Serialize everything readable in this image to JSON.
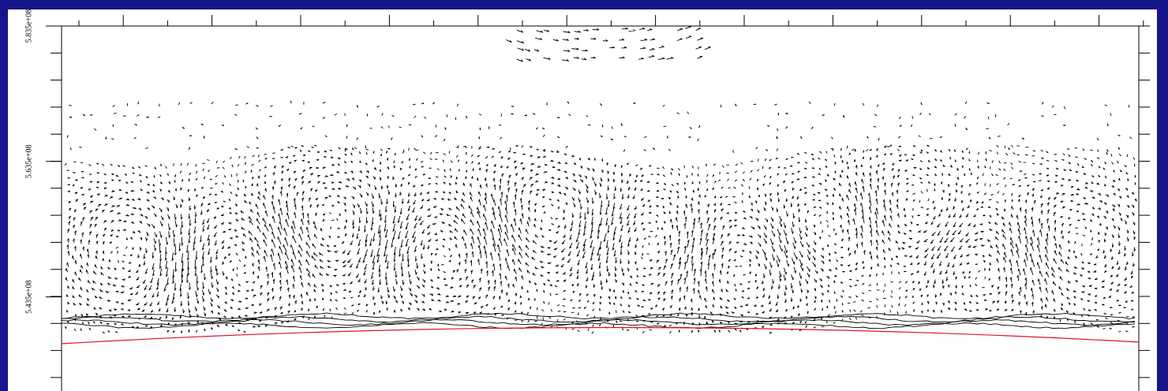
{
  "chart_data": {
    "type": "quiver",
    "ylim": [
      529600000,
      583500000
    ],
    "yticks": [
      {
        "value": 583500000,
        "label": "5.835e+08"
      },
      {
        "value": 563500000,
        "label": "5.635e+08"
      },
      {
        "value": 543500000,
        "label": "5.435e+08"
      }
    ],
    "curve_color": "#e0102a"
  }
}
